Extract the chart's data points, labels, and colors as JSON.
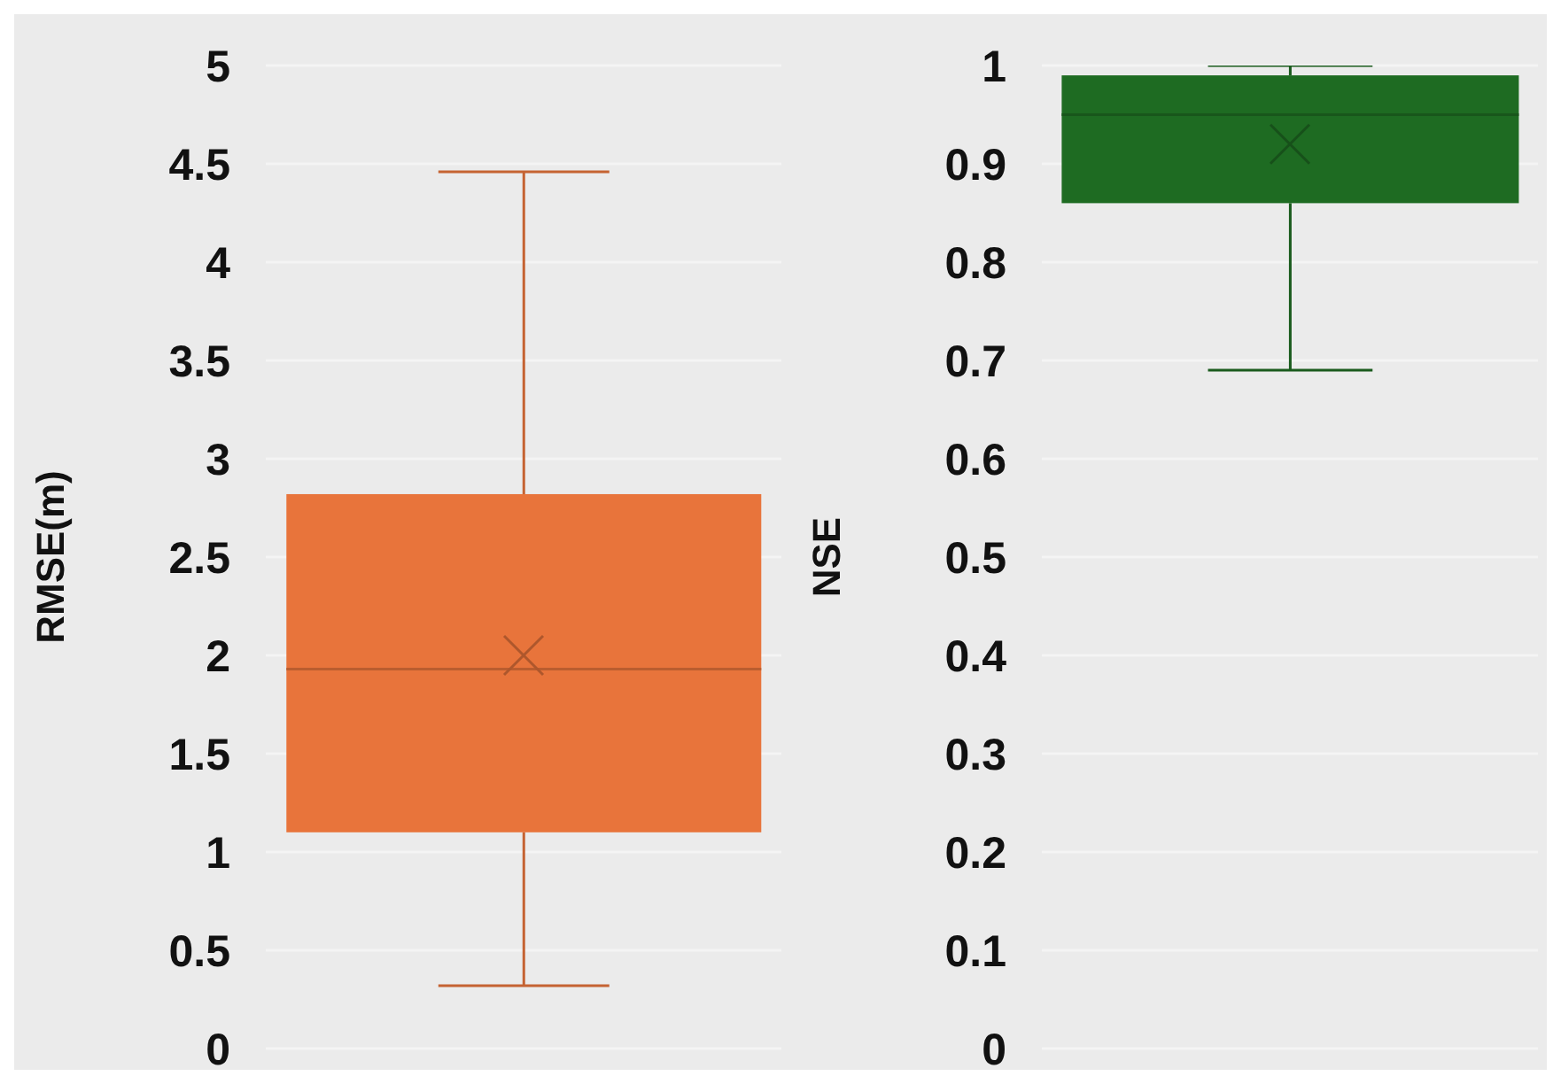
{
  "chart_data": [
    {
      "type": "box",
      "ylabel": "RMSE(m)",
      "categories": [
        null
      ],
      "ylim": [
        0,
        5
      ],
      "yticks": [
        0,
        0.5,
        1,
        1.5,
        2,
        2.5,
        3,
        3.5,
        4,
        4.5,
        5
      ],
      "grid": "y",
      "tick_labels": "y",
      "series": [
        {
          "color": "#e8743b",
          "boxes": [
            {
              "low": 0.32,
              "q1": 1.1,
              "median": 1.93,
              "q3": 2.82,
              "high": 4.46,
              "mean": 2.0
            }
          ]
        }
      ]
    },
    {
      "type": "box",
      "ylabel": "NSE",
      "categories": [
        null
      ],
      "ylim": [
        0,
        1
      ],
      "yticks": [
        0,
        0.1,
        0.2,
        0.3,
        0.4,
        0.5,
        0.6,
        0.7,
        0.8,
        0.9,
        1
      ],
      "grid": "y",
      "tick_labels": "y",
      "series": [
        {
          "color": "#1e6b22",
          "boxes": [
            {
              "low": 0.69,
              "q1": 0.86,
              "median": 0.95,
              "q3": 0.99,
              "high": 1.0,
              "mean": 0.92
            }
          ]
        }
      ]
    }
  ]
}
